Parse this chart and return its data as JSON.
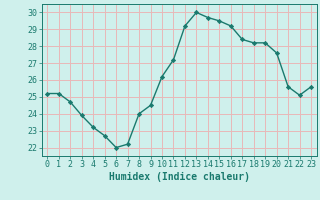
{
  "x": [
    0,
    1,
    2,
    3,
    4,
    5,
    6,
    7,
    8,
    9,
    10,
    11,
    12,
    13,
    14,
    15,
    16,
    17,
    18,
    19,
    20,
    21,
    22,
    23
  ],
  "y": [
    25.2,
    25.2,
    24.7,
    23.9,
    23.2,
    22.7,
    22.0,
    22.2,
    24.0,
    24.5,
    26.2,
    27.2,
    29.2,
    30.0,
    29.7,
    29.5,
    29.2,
    28.4,
    28.2,
    28.2,
    27.6,
    25.6,
    25.1,
    25.6
  ],
  "line_color": "#1a7a6e",
  "marker": "D",
  "marker_size": 2.2,
  "bg_color": "#cff0ec",
  "grid_color": "#e8b8b8",
  "xlabel": "Humidex (Indice chaleur)",
  "ylim": [
    21.5,
    30.5
  ],
  "xlim": [
    -0.5,
    23.5
  ],
  "yticks": [
    22,
    23,
    24,
    25,
    26,
    27,
    28,
    29,
    30
  ],
  "xticks": [
    0,
    1,
    2,
    3,
    4,
    5,
    6,
    7,
    8,
    9,
    10,
    11,
    12,
    13,
    14,
    15,
    16,
    17,
    18,
    19,
    20,
    21,
    22,
    23
  ],
  "tick_color": "#1a7a6e",
  "label_fontsize": 7,
  "tick_fontsize": 6,
  "line_width": 1.0
}
